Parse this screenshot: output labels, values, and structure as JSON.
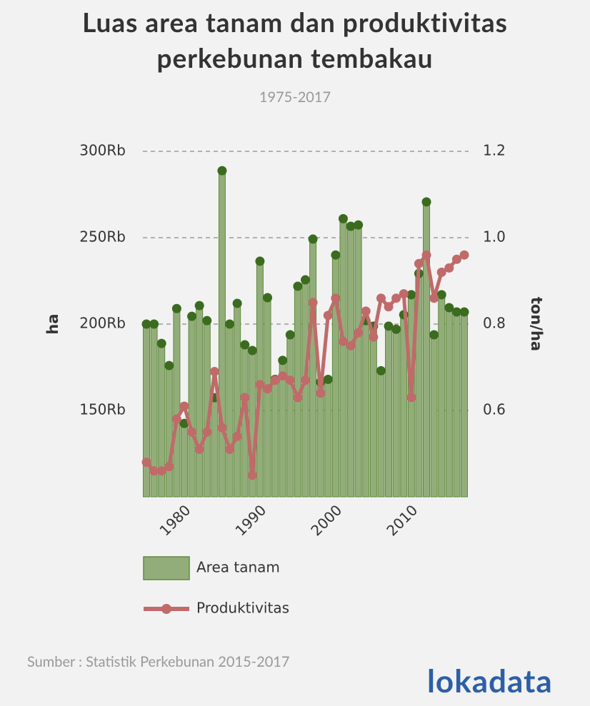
{
  "chart_data": {
    "type": "bar-line",
    "title": "Luas area tanam dan produktivitas perkebunan tembakau",
    "subtitle": "1975-2017",
    "y_label": "ha",
    "y2_label": "ton/ha",
    "source": "Sumber : Statistik Perkebunan 2015-2017",
    "brand": "lokadata",
    "x": [
      1975,
      1976,
      1977,
      1978,
      1979,
      1980,
      1981,
      1982,
      1983,
      1984,
      1985,
      1986,
      1987,
      1988,
      1989,
      1990,
      1991,
      1992,
      1993,
      1994,
      1995,
      1996,
      1997,
      1998,
      1999,
      2000,
      2001,
      2002,
      2003,
      2004,
      2005,
      2006,
      2007,
      2008,
      2009,
      2010,
      2011,
      2012,
      2013,
      2014,
      2015,
      2016,
      2017
    ],
    "xlim": [
      1975,
      2017
    ],
    "xticks": [
      1980,
      1990,
      2000,
      2010
    ],
    "ylim": [
      100000,
      300000
    ],
    "yticks": [
      {
        "value": 150000,
        "label": "150Rb"
      },
      {
        "value": 200000,
        "label": "200Rb"
      },
      {
        "value": 250000,
        "label": "250Rb"
      },
      {
        "value": 300000,
        "label": "300Rb"
      }
    ],
    "y2lim": [
      0.4,
      1.2
    ],
    "y2ticks": [
      0.6,
      0.8,
      {
        "value": 1,
        "label": "1.0"
      },
      1.2
    ],
    "grid": true,
    "series": [
      {
        "name": "Area tanam",
        "type": "bar",
        "color": "#93ad7a",
        "edge_color": "#5e8a3c",
        "marker_color": "#3b6b1f",
        "values": [
          200000,
          200000,
          188800,
          176000,
          209000,
          142500,
          204500,
          210700,
          202000,
          157400,
          288800,
          200000,
          212000,
          188000,
          184700,
          236400,
          215300,
          168000,
          179000,
          193800,
          221900,
          225600,
          249200,
          166500,
          168000,
          240000,
          261000,
          256600,
          257400,
          202000,
          198800,
          173000,
          198800,
          197000,
          205400,
          217000,
          229300,
          270700,
          193800,
          217000,
          209500,
          207000,
          207000
        ]
      },
      {
        "name": "Produktivitas",
        "type": "line",
        "axis": "y2",
        "color": "#c06a6a",
        "values": [
          0.48,
          0.46,
          0.46,
          0.47,
          0.58,
          0.61,
          0.55,
          0.51,
          0.55,
          0.69,
          0.56,
          0.51,
          0.54,
          0.63,
          0.45,
          0.66,
          0.65,
          0.67,
          0.68,
          0.67,
          0.63,
          0.67,
          0.85,
          0.64,
          0.82,
          0.86,
          0.76,
          0.75,
          0.78,
          0.83,
          0.77,
          0.86,
          0.84,
          0.86,
          0.87,
          0.63,
          0.94,
          0.96,
          0.86,
          0.92,
          0.93,
          0.95,
          0.96
        ]
      }
    ]
  }
}
